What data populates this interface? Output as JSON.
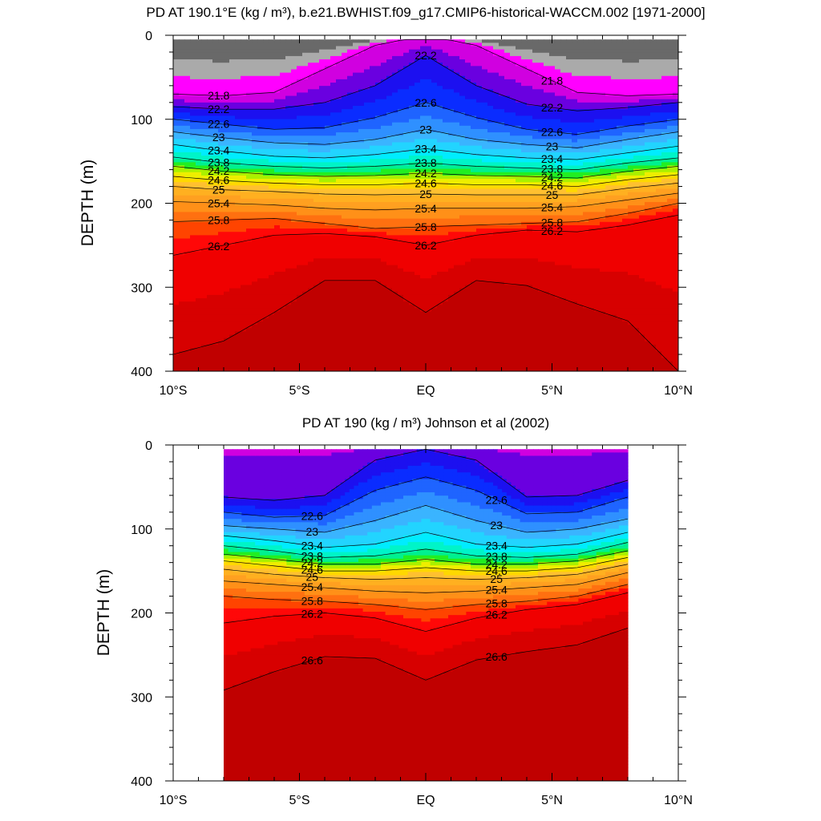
{
  "chart_data": [
    {
      "type": "contour",
      "title": "PD AT 190.1°E (kg / m³), b.e21.BWHIST.f09_g17.CMIP6-historical-WACCM.002 [1971-2000]",
      "xlabel": "",
      "ylabel": "DEPTH (m)",
      "xlim": [
        -10,
        10
      ],
      "ylim": [
        0,
        400
      ],
      "y_inverted": true,
      "grid": false,
      "x_ticks": [
        {
          "value": -10,
          "label": "10°S"
        },
        {
          "value": -5,
          "label": "5°S"
        },
        {
          "value": 0,
          "label": "EQ"
        },
        {
          "value": 5,
          "label": "5°N"
        },
        {
          "value": 10,
          "label": "10°N"
        }
      ],
      "y_ticks": [
        {
          "value": 0,
          "label": "0"
        },
        {
          "value": 100,
          "label": "100"
        },
        {
          "value": 200,
          "label": "200"
        },
        {
          "value": 300,
          "label": "300"
        },
        {
          "value": 400,
          "label": "400"
        }
      ],
      "data_lat_range": [
        -10,
        10
      ],
      "data_depth_range": [
        5,
        400
      ],
      "contour_interval": 0.2,
      "depth_of_isopycnal": {
        "lat": [
          -10,
          -8,
          -6,
          -4,
          -2,
          0,
          2,
          4,
          6,
          8,
          10
        ],
        "series": [
          {
            "level": 21.8,
            "depth": [
              70,
              72,
              68,
              40,
              12,
              0,
              12,
              40,
              68,
              72,
              70
            ]
          },
          {
            "level": 22.2,
            "depth": [
              85,
              88,
              88,
              80,
              60,
              24,
              60,
              82,
              90,
              86,
              80
            ]
          },
          {
            "level": 22.6,
            "depth": [
              100,
              106,
              112,
              110,
              98,
              80,
              98,
              112,
              118,
              108,
              100
            ]
          },
          {
            "level": 23.0,
            "depth": [
              115,
              122,
              128,
              130,
              124,
              112,
              124,
              130,
              134,
              124,
              115
            ]
          },
          {
            "level": 23.4,
            "depth": [
              130,
              138,
              144,
              146,
              142,
              135,
              142,
              146,
              148,
              140,
              132
            ]
          },
          {
            "level": 23.8,
            "depth": [
              145,
              152,
              156,
              158,
              156,
              152,
              156,
              158,
              160,
              152,
              146
            ]
          },
          {
            "level": 24.2,
            "depth": [
              156,
              162,
              166,
              168,
              167,
              164,
              167,
              168,
              170,
              162,
              156
            ]
          },
          {
            "level": 24.6,
            "depth": [
              168,
              173,
              176,
              178,
              178,
              176,
              178,
              178,
              180,
              172,
              166
            ]
          },
          {
            "level": 25.0,
            "depth": [
              180,
              184,
              186,
              189,
              190,
              189,
              190,
              190,
              190,
              182,
              176
            ]
          },
          {
            "level": 25.4,
            "depth": [
              198,
              200,
              202,
              206,
              208,
              206,
              206,
              206,
              204,
              196,
              188
            ]
          },
          {
            "level": 25.8,
            "depth": [
              222,
              220,
              218,
              224,
              230,
              228,
              226,
              224,
              222,
              212,
              200
            ]
          },
          {
            "level": 26.2,
            "depth": [
              262,
              250,
              238,
              236,
              240,
              250,
              238,
              232,
              234,
              226,
              214
            ]
          },
          {
            "level": 26.6,
            "depth": [
              380,
              364,
              330,
              292,
              292,
              330,
              292,
              298,
              320,
              340,
              400
            ]
          }
        ]
      },
      "contour_labels": [
        "21.8",
        "22.2",
        "22.6",
        "23",
        "23.4",
        "23.8",
        "24.2",
        "24.6",
        "25",
        "25.4",
        "25.8",
        "26.2"
      ]
    },
    {
      "type": "contour",
      "title": "PD AT 190 (kg / m³) Johnson et al (2002)",
      "xlabel": "",
      "ylabel": "DEPTH (m)",
      "xlim": [
        -10,
        10
      ],
      "ylim": [
        0,
        400
      ],
      "y_inverted": true,
      "grid": false,
      "x_ticks": [
        {
          "value": -10,
          "label": "10°S"
        },
        {
          "value": -5,
          "label": "5°S"
        },
        {
          "value": 0,
          "label": "EQ"
        },
        {
          "value": 5,
          "label": "5°N"
        },
        {
          "value": 10,
          "label": "10°N"
        }
      ],
      "y_ticks": [
        {
          "value": 0,
          "label": "0"
        },
        {
          "value": 100,
          "label": "100"
        },
        {
          "value": 200,
          "label": "200"
        },
        {
          "value": 300,
          "label": "300"
        },
        {
          "value": 400,
          "label": "400"
        }
      ],
      "data_lat_range": [
        -8,
        8
      ],
      "data_depth_range": [
        5,
        400
      ],
      "contour_interval": 0.2,
      "depth_of_isopycnal": {
        "lat": [
          -8,
          -6,
          -4,
          -2,
          0,
          2,
          4,
          6,
          8
        ],
        "series": [
          {
            "level": 22.2,
            "depth": [
              62,
              66,
              60,
              18,
              5,
              18,
              62,
              60,
              42
            ]
          },
          {
            "level": 22.6,
            "depth": [
              80,
              86,
              84,
              54,
              38,
              54,
              82,
              80,
              62
            ]
          },
          {
            "level": 23.0,
            "depth": [
              96,
              100,
              104,
              90,
              72,
              90,
              104,
              100,
              88
            ]
          },
          {
            "level": 23.4,
            "depth": [
              108,
              114,
              122,
              118,
              104,
              118,
              122,
              118,
              104
            ]
          },
          {
            "level": 23.8,
            "depth": [
              120,
              126,
              134,
              132,
              124,
              132,
              134,
              130,
              116
            ]
          },
          {
            "level": 24.2,
            "depth": [
              130,
              136,
              142,
              142,
              136,
              142,
              142,
              138,
              126
            ]
          },
          {
            "level": 24.6,
            "depth": [
              138,
              144,
              150,
              150,
              146,
              150,
              150,
              146,
              134
            ]
          },
          {
            "level": 25.0,
            "depth": [
              148,
              154,
              158,
              160,
              158,
              160,
              158,
              154,
              142
            ]
          },
          {
            "level": 25.4,
            "depth": [
              162,
              166,
              170,
              174,
              176,
              174,
              170,
              166,
              152
            ]
          },
          {
            "level": 25.8,
            "depth": [
              180,
              184,
              186,
              190,
              196,
              190,
              186,
              180,
              166
            ]
          },
          {
            "level": 26.2,
            "depth": [
              212,
              204,
              200,
              206,
              222,
              206,
              196,
              190,
              176
            ]
          },
          {
            "level": 26.6,
            "depth": [
              292,
              270,
              252,
              254,
              280,
              256,
              246,
              238,
              218
            ]
          }
        ]
      },
      "contour_labels": [
        "22.6",
        "23",
        "23.4",
        "23.8",
        "24.2",
        "24.6",
        "25",
        "25.4",
        "25.8",
        "26.2",
        "26.6"
      ]
    }
  ],
  "colors": {
    "lt21.4": "#696969",
    "21.4-21.6": "#aaaaaa",
    "21.6-21.8": "#ff00ff",
    "21.8-22.0": "#cc00dd",
    "22.0-22.2": "#6a00e0",
    "22.2-22.6": "#0a14f0",
    "22.6-22.8": "#1f64ff",
    "23.0": "#3ab4ff",
    "23.4": "#00e8ff",
    "23.8": "#00f0a0",
    "24.2": "#22ee22",
    "24.6": "#eeee00",
    "25.0": "#ffb020",
    "25.8": "#ff7010",
    "26.2": "#ff0808",
    "26.6": "#d70000",
    "deep": "#c00000"
  }
}
